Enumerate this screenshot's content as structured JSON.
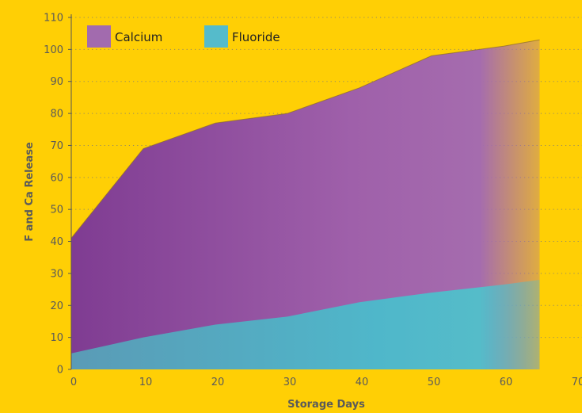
{
  "chart_data": {
    "type": "area",
    "title": "",
    "xlabel": "Storage Days",
    "ylabel": "F and Ca Release",
    "xlim": [
      0,
      70
    ],
    "ylim": [
      0,
      110
    ],
    "x_ticks": [
      0,
      10,
      20,
      30,
      40,
      50,
      60,
      70
    ],
    "y_ticks": [
      0,
      10,
      20,
      30,
      40,
      50,
      60,
      70,
      80,
      90,
      100,
      110
    ],
    "grid": "horizontal dotted",
    "legend_position": "top-left",
    "series": [
      {
        "name": "Calcium",
        "color": "#A26BAE",
        "x": [
          0,
          10,
          20,
          30,
          40,
          50,
          60,
          65
        ],
        "values": [
          41,
          69,
          77,
          80,
          88,
          98,
          101,
          103
        ]
      },
      {
        "name": "Fluoride",
        "color": "#55BBCB",
        "x": [
          0,
          10,
          20,
          30,
          40,
          50,
          60,
          65
        ],
        "values": [
          5,
          10,
          14,
          16.5,
          21,
          24,
          26.5,
          28
        ]
      }
    ]
  }
}
